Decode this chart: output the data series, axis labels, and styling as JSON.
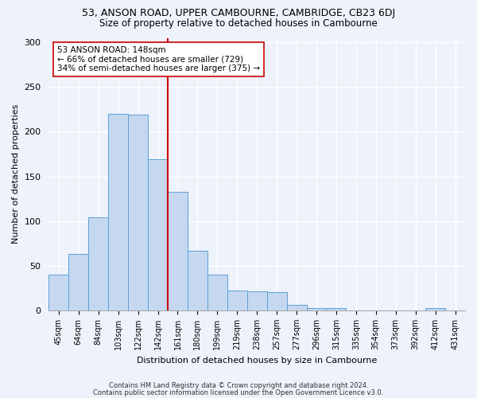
{
  "title1": "53, ANSON ROAD, UPPER CAMBOURNE, CAMBRIDGE, CB23 6DJ",
  "title2": "Size of property relative to detached houses in Cambourne",
  "xlabel": "Distribution of detached houses by size in Cambourne",
  "ylabel": "Number of detached properties",
  "categories": [
    "45sqm",
    "64sqm",
    "84sqm",
    "103sqm",
    "122sqm",
    "142sqm",
    "161sqm",
    "180sqm",
    "199sqm",
    "219sqm",
    "238sqm",
    "257sqm",
    "277sqm",
    "296sqm",
    "315sqm",
    "335sqm",
    "354sqm",
    "373sqm",
    "392sqm",
    "412sqm",
    "431sqm"
  ],
  "values": [
    40,
    63,
    104,
    220,
    219,
    169,
    133,
    67,
    40,
    22,
    21,
    20,
    6,
    3,
    3,
    0,
    0,
    0,
    0,
    3,
    0
  ],
  "bar_color": "#c5d8f0",
  "bar_edge_color": "#5a9fd4",
  "vline_x_index": 6,
  "vline_color": "#cc0000",
  "annotation_line1": "53 ANSON ROAD: 148sqm",
  "annotation_line2": "← 66% of detached houses are smaller (729)",
  "annotation_line3": "34% of semi-detached houses are larger (375) →",
  "annotation_box_color": "#ffffff",
  "annotation_box_edge": "#cc0000",
  "ylim": [
    0,
    305
  ],
  "yticks": [
    0,
    50,
    100,
    150,
    200,
    250,
    300
  ],
  "footer1": "Contains HM Land Registry data © Crown copyright and database right 2024.",
  "footer2": "Contains public sector information licensed under the Open Government Licence v3.0.",
  "bg_color": "#eef2fb",
  "grid_color": "#ffffff",
  "fig_width": 6.0,
  "fig_height": 5.0,
  "dpi": 100
}
